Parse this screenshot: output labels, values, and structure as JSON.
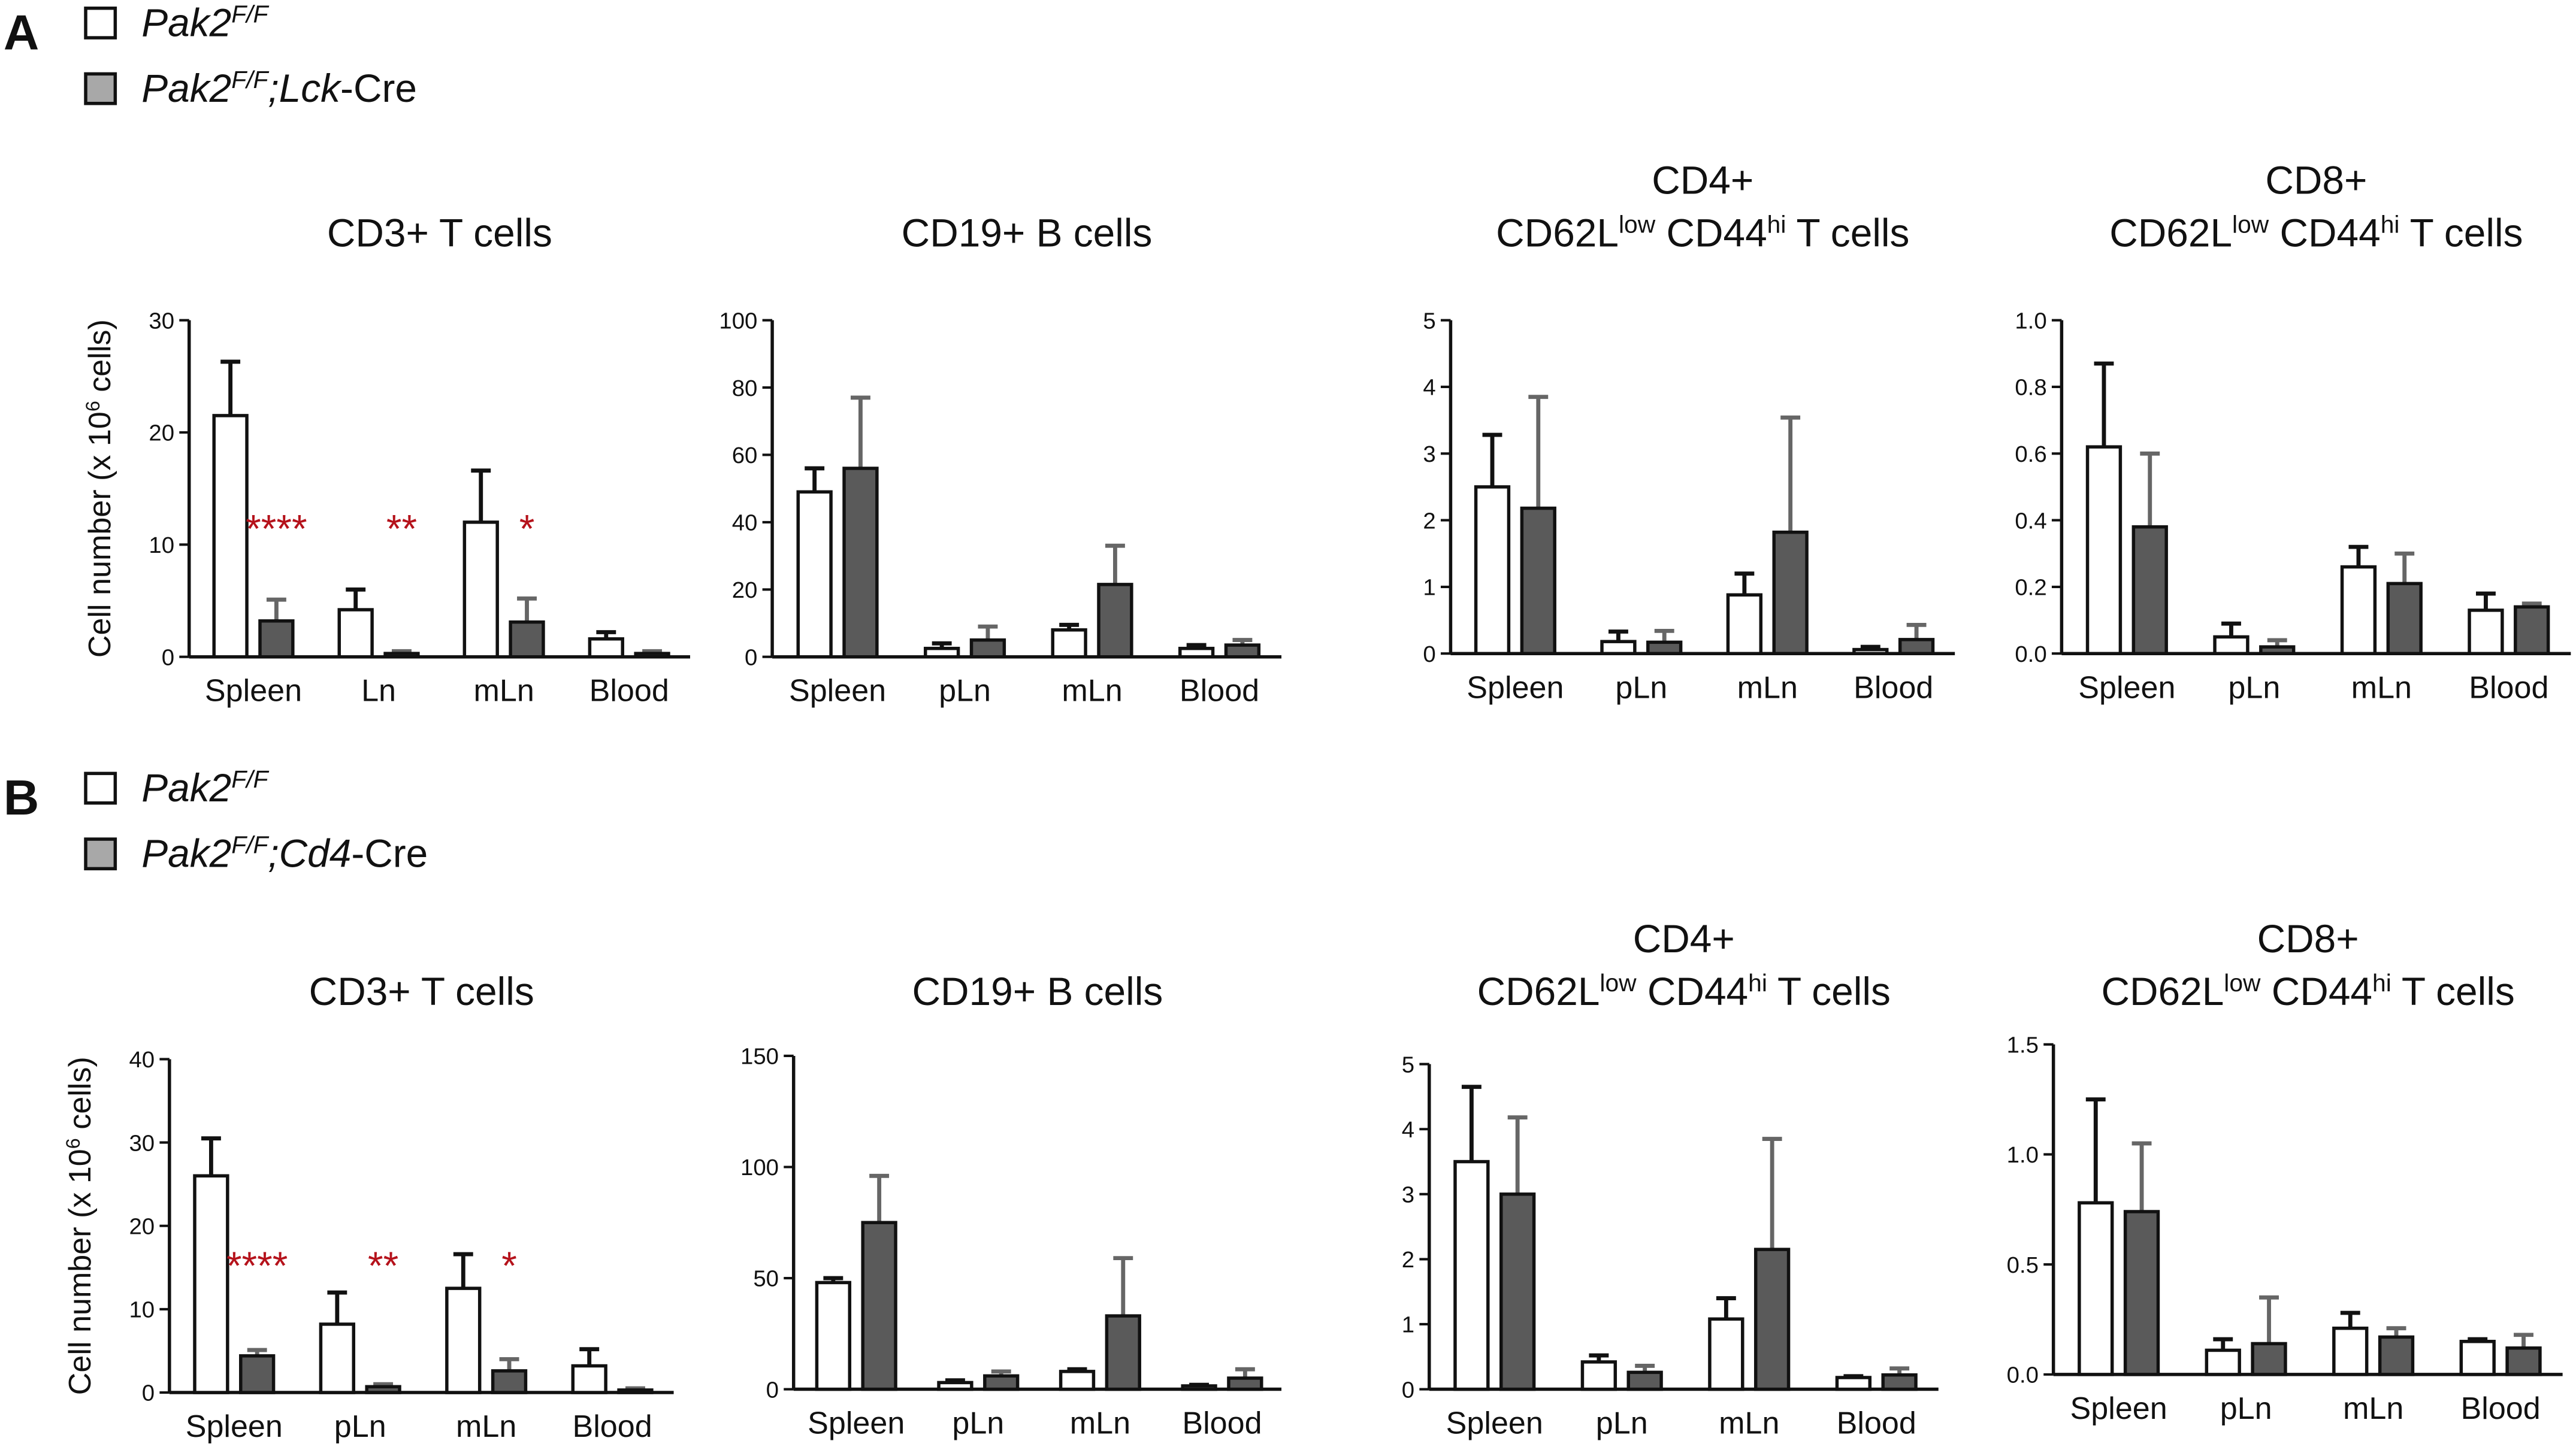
{
  "panels": [
    {
      "label": "A",
      "legend": [
        [
          {
            "t": "Pak2",
            "italic": true
          },
          {
            "t": "F/F",
            "sup": true,
            "italic": true
          }
        ],
        [
          {
            "t": "Pak2",
            "italic": true
          },
          {
            "t": "F/F",
            "sup": true,
            "italic": true
          },
          {
            "t": ";Lck",
            "italic": true
          },
          {
            "t": "-Cre"
          }
        ]
      ]
    },
    {
      "label": "B",
      "legend": [
        [
          {
            "t": "Pak2",
            "italic": true
          },
          {
            "t": "F/F",
            "sup": true,
            "italic": true
          }
        ],
        [
          {
            "t": "Pak2",
            "italic": true
          },
          {
            "t": "F/F",
            "sup": true,
            "italic": true
          },
          {
            "t": ";Cd4",
            "italic": true
          },
          {
            "t": "-Cre"
          }
        ]
      ]
    }
  ],
  "chart_data": [
    {
      "type": "bar",
      "title": [
        [
          {
            "t": "CD3+ T cells"
          }
        ]
      ],
      "ylabel": [
        {
          "t": "Cell number (x 10"
        },
        {
          "t": "6",
          "sup": true
        },
        {
          "t": " cells)"
        }
      ],
      "categories": [
        "Spleen",
        "Ln",
        "mLn",
        "Blood"
      ],
      "series": [
        {
          "color": "#ffffff",
          "values": [
            21.5,
            4.2,
            12,
            1.6
          ],
          "errors": [
            4.8,
            1.8,
            4.6,
            0.6
          ]
        },
        {
          "color": "#5a5a5a",
          "values": [
            3.2,
            0.3,
            3.1,
            0.3
          ],
          "errors": [
            1.9,
            0.2,
            2.1,
            0.2
          ]
        }
      ],
      "annotations": [
        {
          "category": "Spleen",
          "text": "****"
        },
        {
          "category": "Ln",
          "text": "**"
        },
        {
          "category": "mLn",
          "text": "*"
        }
      ],
      "ylim": [
        0,
        30
      ],
      "yticks": [
        0,
        10,
        20,
        30
      ]
    },
    {
      "type": "bar",
      "title": [
        [
          {
            "t": "CD19+ B cells"
          }
        ]
      ],
      "categories": [
        "Spleen",
        "pLn",
        "mLn",
        "Blood"
      ],
      "series": [
        {
          "color": "#ffffff",
          "values": [
            49,
            2.5,
            8,
            2.5
          ],
          "errors": [
            7,
            1.5,
            1.5,
            1
          ]
        },
        {
          "color": "#5a5a5a",
          "values": [
            56,
            5,
            21.5,
            3.5
          ],
          "errors": [
            21,
            4,
            11.5,
            1.5
          ]
        }
      ],
      "ylim": [
        0,
        100
      ],
      "yticks": [
        0,
        20,
        40,
        60,
        80,
        100
      ]
    },
    {
      "type": "bar",
      "title": [
        [
          {
            "t": "CD4+"
          }
        ],
        [
          {
            "t": "CD62L"
          },
          {
            "t": "low",
            "sup": true
          },
          {
            "t": " CD44"
          },
          {
            "t": "hi",
            "sup": true
          },
          {
            "t": " T cells"
          }
        ]
      ],
      "categories": [
        "Spleen",
        "pLn",
        "mLn",
        "Blood"
      ],
      "series": [
        {
          "color": "#ffffff",
          "values": [
            2.5,
            0.18,
            0.88,
            0.06
          ],
          "errors": [
            0.78,
            0.15,
            0.32,
            0.04
          ]
        },
        {
          "color": "#5a5a5a",
          "values": [
            2.18,
            0.17,
            1.82,
            0.21
          ],
          "errors": [
            1.67,
            0.17,
            1.72,
            0.22
          ]
        }
      ],
      "ylim": [
        0,
        5
      ],
      "yticks": [
        0,
        1,
        2,
        3,
        4,
        5
      ]
    },
    {
      "type": "bar",
      "title": [
        [
          {
            "t": "CD8+"
          }
        ],
        [
          {
            "t": "CD62L"
          },
          {
            "t": "low",
            "sup": true
          },
          {
            "t": " CD44"
          },
          {
            "t": "hi",
            "sup": true
          },
          {
            "t": " T cells"
          }
        ]
      ],
      "categories": [
        "Spleen",
        "pLn",
        "mLn",
        "Blood"
      ],
      "series": [
        {
          "color": "#ffffff",
          "values": [
            0.62,
            0.05,
            0.26,
            0.13
          ],
          "errors": [
            0.25,
            0.04,
            0.06,
            0.05
          ]
        },
        {
          "color": "#5a5a5a",
          "values": [
            0.38,
            0.02,
            0.21,
            0.14
          ],
          "errors": [
            0.22,
            0.02,
            0.09,
            0.01
          ]
        }
      ],
      "ylim": [
        0,
        1
      ],
      "yticks": [
        {
          "value": 0,
          "label": "0.0"
        },
        0.2,
        0.4,
        0.6,
        0.8,
        {
          "value": 1,
          "label": "1.0"
        }
      ]
    },
    {
      "type": "bar",
      "title": [
        [
          {
            "t": "CD3+ T cells"
          }
        ]
      ],
      "ylabel": [
        {
          "t": "Cell number (x 10"
        },
        {
          "t": "6",
          "sup": true
        },
        {
          "t": " cells)"
        }
      ],
      "categories": [
        "Spleen",
        "pLn",
        "mLn",
        "Blood"
      ],
      "series": [
        {
          "color": "#ffffff",
          "values": [
            26,
            8.2,
            12.5,
            3.2
          ],
          "errors": [
            4.5,
            3.8,
            4.1,
            2
          ]
        },
        {
          "color": "#5a5a5a",
          "values": [
            4.4,
            0.7,
            2.6,
            0.3
          ],
          "errors": [
            0.7,
            0.3,
            1.4,
            0.2
          ]
        }
      ],
      "annotations": [
        {
          "category": "Spleen",
          "text": "****"
        },
        {
          "category": "pLn",
          "text": "**"
        },
        {
          "category": "mLn",
          "text": "*"
        }
      ],
      "ylim": [
        0,
        40
      ],
      "yticks": [
        0,
        10,
        20,
        30,
        40
      ]
    },
    {
      "type": "bar",
      "title": [
        [
          {
            "t": "CD19+ B cells"
          }
        ]
      ],
      "categories": [
        "Spleen",
        "pLn",
        "mLn",
        "Blood"
      ],
      "series": [
        {
          "color": "#ffffff",
          "values": [
            48,
            3,
            8,
            1.5
          ],
          "errors": [
            2,
            1,
            1,
            0.5
          ]
        },
        {
          "color": "#5a5a5a",
          "values": [
            75,
            6,
            33,
            5
          ],
          "errors": [
            21,
            2,
            26,
            4
          ]
        }
      ],
      "ylim": [
        0,
        150
      ],
      "yticks": [
        0,
        50,
        100,
        150
      ]
    },
    {
      "type": "bar",
      "title": [
        [
          {
            "t": "CD4+"
          }
        ],
        [
          {
            "t": "CD62L"
          },
          {
            "t": "low",
            "sup": true
          },
          {
            "t": " CD44"
          },
          {
            "t": "hi",
            "sup": true
          },
          {
            "t": " T cells"
          }
        ]
      ],
      "categories": [
        "Spleen",
        "pLn",
        "mLn",
        "Blood"
      ],
      "series": [
        {
          "color": "#ffffff",
          "values": [
            3.5,
            0.42,
            1.08,
            0.18
          ],
          "errors": [
            1.15,
            0.1,
            0.32,
            0.02
          ]
        },
        {
          "color": "#5a5a5a",
          "values": [
            3.0,
            0.26,
            2.15,
            0.22
          ],
          "errors": [
            1.18,
            0.1,
            1.7,
            0.1
          ]
        }
      ],
      "ylim": [
        0,
        5
      ],
      "yticks": [
        0,
        1,
        2,
        3,
        4,
        5
      ]
    },
    {
      "type": "bar",
      "title": [
        [
          {
            "t": "CD8+"
          }
        ],
        [
          {
            "t": "CD62L"
          },
          {
            "t": "low",
            "sup": true
          },
          {
            "t": " CD44"
          },
          {
            "t": "hi",
            "sup": true
          },
          {
            "t": " T cells"
          }
        ]
      ],
      "categories": [
        "Spleen",
        "pLn",
        "mLn",
        "Blood"
      ],
      "series": [
        {
          "color": "#ffffff",
          "values": [
            0.78,
            0.11,
            0.21,
            0.15
          ],
          "errors": [
            0.47,
            0.05,
            0.07,
            0.01
          ]
        },
        {
          "color": "#5a5a5a",
          "values": [
            0.74,
            0.14,
            0.17,
            0.12
          ],
          "errors": [
            0.31,
            0.21,
            0.04,
            0.06
          ]
        }
      ],
      "ylim": [
        0,
        1.5
      ],
      "yticks": [
        {
          "value": 0,
          "label": "0.0"
        },
        0.5,
        {
          "value": 1,
          "label": "1.0"
        },
        1.5
      ]
    }
  ]
}
